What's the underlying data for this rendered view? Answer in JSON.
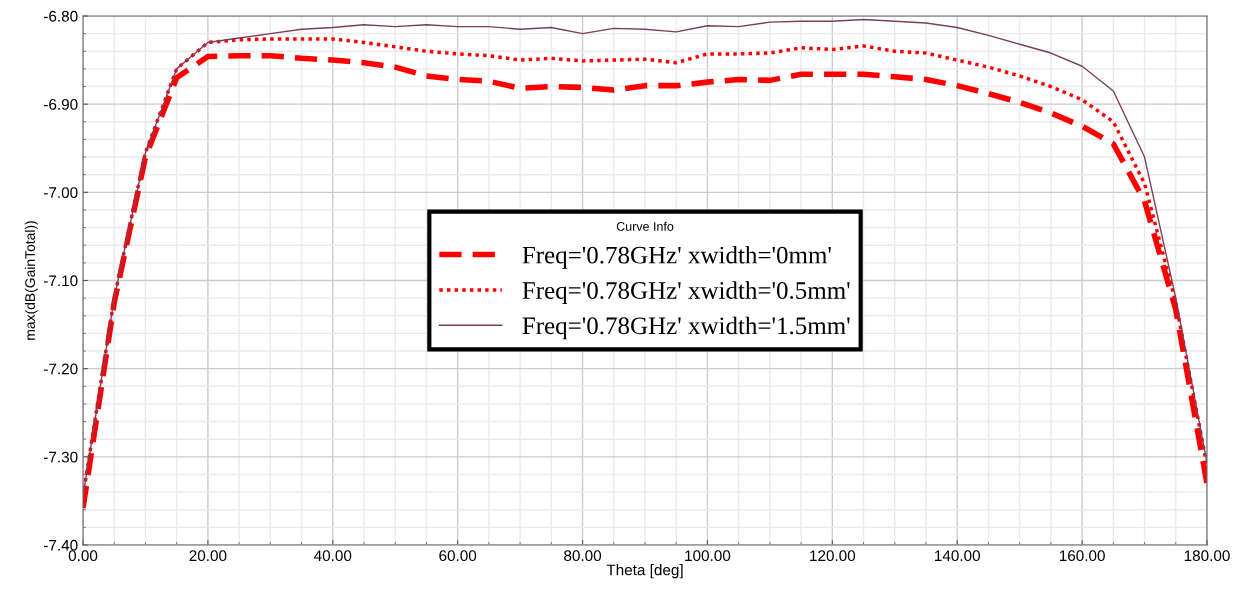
{
  "chart_data": {
    "type": "line",
    "xlabel": "Theta [deg]",
    "ylabel": "max(dB(GainTotal))",
    "legend_title": "Curve Info",
    "legend": "center",
    "grid": true,
    "marker": "none",
    "x": [
      0,
      5,
      10,
      15,
      20,
      25,
      30,
      35,
      40,
      45,
      50,
      55,
      60,
      65,
      70,
      75,
      80,
      85,
      90,
      95,
      100,
      105,
      110,
      115,
      120,
      125,
      130,
      135,
      140,
      145,
      150,
      155,
      160,
      165,
      170,
      175,
      180
    ],
    "xlim": [
      0,
      180
    ],
    "ylim": [
      -7.4,
      -6.8
    ],
    "xticks": [
      {
        "value": 0,
        "label": "0.00"
      },
      {
        "value": 20,
        "label": "20.00"
      },
      {
        "value": 40,
        "label": "40.00"
      },
      {
        "value": 60,
        "label": "60.00"
      },
      {
        "value": 80,
        "label": "80.00"
      },
      {
        "value": 100,
        "label": "100.00"
      },
      {
        "value": 120,
        "label": "120.00"
      },
      {
        "value": 140,
        "label": "140.00"
      },
      {
        "value": 160,
        "label": "160.00"
      },
      {
        "value": 180,
        "label": "180.00"
      }
    ],
    "yticks": [
      {
        "value": -7.4,
        "label": "-7.40"
      },
      {
        "value": -7.3,
        "label": "-7.30"
      },
      {
        "value": -7.2,
        "label": "-7.20"
      },
      {
        "value": -7.1,
        "label": "-7.10"
      },
      {
        "value": -7.0,
        "label": "-7.00"
      },
      {
        "value": -6.9,
        "label": "-6.90"
      },
      {
        "value": -6.8,
        "label": "-6.80"
      }
    ],
    "series": [
      {
        "name": "Freq='0.78GHz' xwidth='0mm'",
        "color": "#ff0000",
        "line_style": "dashed",
        "values": [
          -7.358,
          -7.125,
          -6.96,
          -6.87,
          -6.846,
          -6.845,
          -6.845,
          -6.848,
          -6.85,
          -6.853,
          -6.858,
          -6.868,
          -6.872,
          -6.874,
          -6.882,
          -6.88,
          -6.881,
          -6.884,
          -6.879,
          -6.879,
          -6.875,
          -6.872,
          -6.873,
          -6.866,
          -6.866,
          -6.866,
          -6.869,
          -6.872,
          -6.879,
          -6.888,
          -6.898,
          -6.91,
          -6.925,
          -6.945,
          -7.01,
          -7.133,
          -7.33
        ]
      },
      {
        "name": "Freq='0.78GHz' xwidth='0.5mm'",
        "color": "#ff0000",
        "line_style": "dotted",
        "values": [
          -7.345,
          -7.12,
          -6.955,
          -6.86,
          -6.83,
          -6.827,
          -6.826,
          -6.826,
          -6.826,
          -6.83,
          -6.835,
          -6.84,
          -6.843,
          -6.845,
          -6.85,
          -6.848,
          -6.851,
          -6.85,
          -6.849,
          -6.853,
          -6.843,
          -6.843,
          -6.842,
          -6.836,
          -6.838,
          -6.834,
          -6.84,
          -6.842,
          -6.85,
          -6.858,
          -6.868,
          -6.88,
          -6.895,
          -6.92,
          -6.99,
          -7.125,
          -7.31
        ]
      },
      {
        "name": "Freq='0.78GHz' xwidth='1.5mm'",
        "color": "#7b3f5e",
        "line_style": "solid",
        "values": [
          -7.345,
          -7.12,
          -6.955,
          -6.86,
          -6.83,
          -6.825,
          -6.82,
          -6.815,
          -6.813,
          -6.81,
          -6.812,
          -6.81,
          -6.812,
          -6.812,
          -6.815,
          -6.813,
          -6.82,
          -6.814,
          -6.815,
          -6.818,
          -6.811,
          -6.812,
          -6.807,
          -6.806,
          -6.806,
          -6.804,
          -6.806,
          -6.808,
          -6.813,
          -6.822,
          -6.832,
          -6.842,
          -6.857,
          -6.885,
          -6.96,
          -7.12,
          -7.307
        ]
      }
    ]
  }
}
